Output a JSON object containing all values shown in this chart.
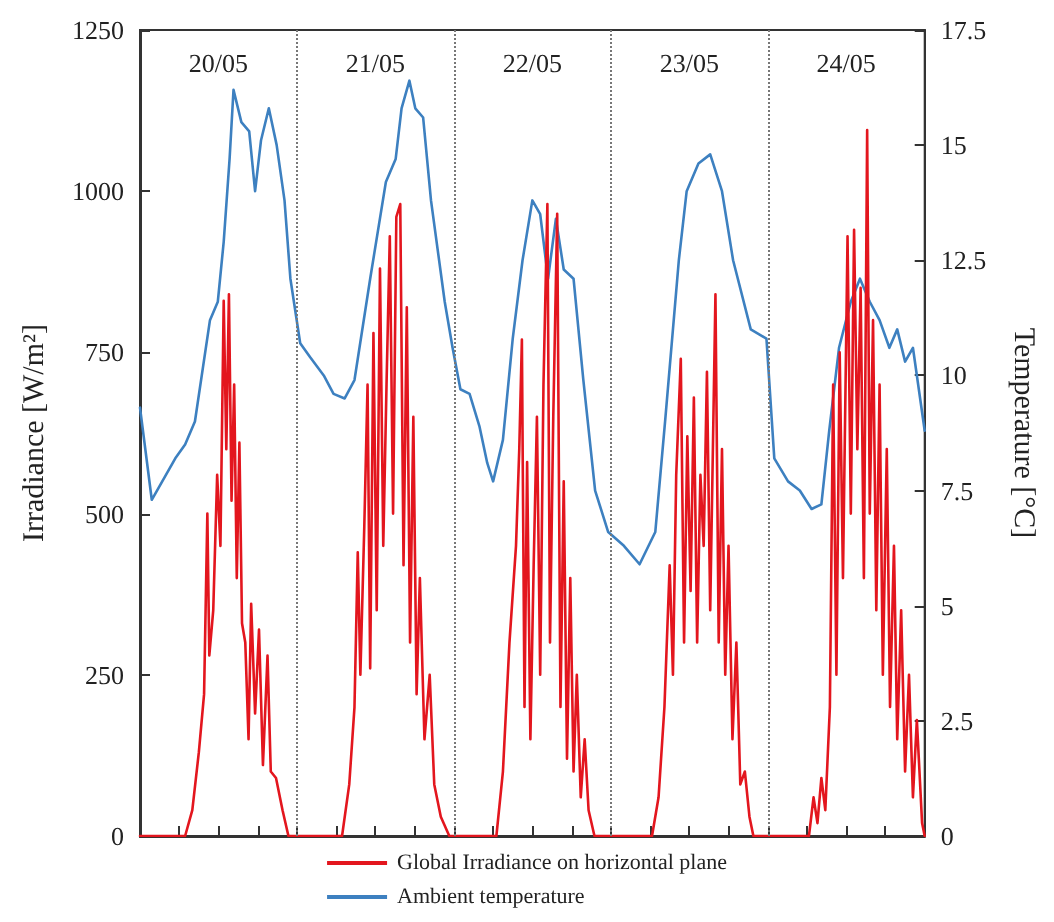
{
  "chart_data": {
    "type": "line",
    "ylabel": "Irradiance [W/m²]",
    "y2label": "Temperature [°C]",
    "xlim": [
      "--05-20T00:00",
      "--05-25T00:00"
    ],
    "xticks": [
      {
        "value": "--05-20T00:00",
        "label": null
      },
      {
        "value": "--05-20T06:00",
        "label": null
      },
      {
        "value": "--05-20T12:00",
        "label": "20/05"
      },
      {
        "value": "--05-20T18:00",
        "label": null
      },
      {
        "value": "--05-21T00:00",
        "label": null
      },
      {
        "value": "--05-21T06:00",
        "label": null
      },
      {
        "value": "--05-21T12:00",
        "label": "21/05"
      },
      {
        "value": "--05-21T18:00",
        "label": null
      },
      {
        "value": "--05-22T00:00",
        "label": null
      },
      {
        "value": "--05-22T06:00",
        "label": null
      },
      {
        "value": "--05-22T12:00",
        "label": "22/05"
      },
      {
        "value": "--05-22T18:00",
        "label": null
      },
      {
        "value": "--05-23T00:00",
        "label": null
      },
      {
        "value": "--05-23T06:00",
        "label": null
      },
      {
        "value": "--05-23T12:00",
        "label": "23/05"
      },
      {
        "value": "--05-23T18:00",
        "label": null
      },
      {
        "value": "--05-24T00:00",
        "label": null
      },
      {
        "value": "--05-24T06:00",
        "label": null
      },
      {
        "value": "--05-24T12:00",
        "label": "24/05"
      },
      {
        "value": "--05-24T18:00",
        "label": null
      },
      {
        "value": "--05-25T00:00",
        "label": null
      }
    ],
    "ylim": [
      0,
      1250
    ],
    "yticks": [
      0,
      250,
      500,
      750,
      1000,
      1250
    ],
    "y2lim": [
      0,
      17.5
    ],
    "y2ticks": [
      0,
      2.5,
      5,
      7.5,
      10,
      12.5,
      15,
      17.5
    ],
    "grid": false,
    "legend": "bottom",
    "marker": "none",
    "line_style": "solid",
    "ref_lines": [
      {
        "axis": "x",
        "value": "--05-21T00:00",
        "color": "#777777",
        "line_style": "dotted"
      },
      {
        "axis": "x",
        "value": "--05-22T00:00",
        "color": "#777777",
        "line_style": "dotted"
      },
      {
        "axis": "x",
        "value": "--05-23T00:00",
        "color": "#777777",
        "line_style": "dotted"
      },
      {
        "axis": "x",
        "value": "--05-24T00:00",
        "color": "#777777",
        "line_style": "dotted"
      }
    ],
    "series": [
      {
        "name": "Global Irradiance on horizontal plane",
        "color": "#e3161e",
        "x": [
          "--05-20T00:00",
          "--05-20T06:54",
          "--05-20T08:00",
          "--05-20T09:00",
          "--05-20T09:48",
          "--05-20T10:18",
          "--05-20T10:36",
          "--05-20T11:12",
          "--05-20T11:48",
          "--05-20T12:18",
          "--05-20T12:48",
          "--05-20T13:12",
          "--05-20T13:36",
          "--05-20T14:00",
          "--05-20T14:24",
          "--05-20T14:48",
          "--05-20T15:12",
          "--05-20T15:36",
          "--05-20T16:06",
          "--05-20T16:36",
          "--05-20T17:00",
          "--05-20T17:36",
          "--05-20T18:12",
          "--05-20T18:48",
          "--05-20T19:30",
          "--05-20T20:00",
          "--05-20T20:48",
          "--05-20T21:48",
          "--05-20T22:42",
          "--05-21T00:00",
          "--05-21T06:54",
          "--05-21T08:00",
          "--05-21T08:48",
          "--05-21T09:18",
          "--05-21T09:42",
          "--05-21T10:18",
          "--05-21T10:48",
          "--05-21T11:12",
          "--05-21T11:42",
          "--05-21T12:12",
          "--05-21T12:42",
          "--05-21T13:12",
          "--05-21T13:42",
          "--05-21T14:12",
          "--05-21T14:42",
          "--05-21T15:12",
          "--05-21T15:48",
          "--05-21T16:18",
          "--05-21T16:48",
          "--05-21T17:18",
          "--05-21T17:48",
          "--05-21T18:18",
          "--05-21T18:48",
          "--05-21T19:30",
          "--05-21T20:18",
          "--05-21T21:00",
          "--05-21T22:00",
          "--05-21T23:18",
          "--05-22T00:00",
          "--05-22T06:30",
          "--05-22T07:30",
          "--05-22T08:30",
          "--05-22T09:30",
          "--05-22T10:00",
          "--05-22T10:24",
          "--05-22T10:48",
          "--05-22T11:12",
          "--05-22T11:42",
          "--05-22T12:12",
          "--05-22T12:42",
          "--05-22T13:12",
          "--05-22T13:42",
          "--05-22T14:18",
          "--05-22T14:42",
          "--05-22T15:12",
          "--05-22T15:48",
          "--05-22T16:18",
          "--05-22T16:48",
          "--05-22T17:18",
          "--05-22T17:48",
          "--05-22T18:18",
          "--05-22T18:48",
          "--05-22T19:24",
          "--05-22T20:00",
          "--05-22T20:36",
          "--05-22T21:30",
          "--05-23T00:00",
          "--05-23T06:18",
          "--05-23T07:18",
          "--05-23T08:12",
          "--05-23T09:00",
          "--05-23T09:30",
          "--05-23T10:00",
          "--05-23T10:42",
          "--05-23T11:12",
          "--05-23T11:42",
          "--05-23T12:12",
          "--05-23T12:42",
          "--05-23T13:12",
          "--05-23T13:42",
          "--05-23T14:12",
          "--05-23T14:42",
          "--05-23T15:12",
          "--05-23T16:00",
          "--05-23T16:30",
          "--05-23T17:00",
          "--05-23T17:30",
          "--05-23T18:00",
          "--05-23T18:36",
          "--05-23T19:12",
          "--05-23T19:48",
          "--05-23T20:30",
          "--05-23T21:12",
          "--05-23T21:48",
          "--05-24T00:00",
          "--05-24T06:18",
          "--05-24T07:00",
          "--05-24T07:36",
          "--05-24T08:12",
          "--05-24T08:48",
          "--05-24T09:30",
          "--05-24T10:00",
          "--05-24T10:30",
          "--05-24T11:00",
          "--05-24T11:30",
          "--05-24T12:12",
          "--05-24T12:42",
          "--05-24T13:12",
          "--05-24T13:42",
          "--05-24T14:12",
          "--05-24T14:42",
          "--05-24T15:12",
          "--05-24T15:36",
          "--05-24T16:06",
          "--05-24T16:36",
          "--05-24T17:06",
          "--05-24T17:36",
          "--05-24T18:12",
          "--05-24T18:42",
          "--05-24T19:18",
          "--05-24T19:48",
          "--05-24T20:24",
          "--05-24T21:00",
          "--05-24T21:36",
          "--05-24T22:12",
          "--05-24T22:48",
          "--05-24T23:36",
          "--05-25T00:00"
        ],
        "values": [
          0,
          0,
          40,
          130,
          220,
          500,
          280,
          350,
          560,
          450,
          830,
          600,
          840,
          520,
          700,
          400,
          610,
          330,
          300,
          150,
          360,
          190,
          320,
          110,
          280,
          100,
          90,
          40,
          0,
          0,
          0,
          80,
          200,
          440,
          250,
          480,
          700,
          260,
          780,
          350,
          880,
          450,
          700,
          930,
          500,
          960,
          980,
          420,
          820,
          300,
          650,
          220,
          400,
          150,
          250,
          80,
          30,
          0,
          0,
          0,
          100,
          300,
          450,
          600,
          770,
          200,
          580,
          150,
          420,
          650,
          250,
          700,
          980,
          300,
          650,
          965,
          200,
          550,
          120,
          400,
          100,
          250,
          60,
          150,
          40,
          0,
          0,
          0,
          60,
          200,
          420,
          250,
          560,
          740,
          300,
          620,
          380,
          680,
          300,
          560,
          450,
          720,
          350,
          840,
          300,
          600,
          250,
          450,
          150,
          300,
          80,
          100,
          30,
          0,
          0,
          0,
          60,
          20,
          90,
          40,
          200,
          700,
          250,
          750,
          400,
          930,
          500,
          940,
          600,
          850,
          400,
          1095,
          500,
          800,
          350,
          700,
          250,
          600,
          200,
          450,
          150,
          350,
          100,
          250,
          60,
          180,
          20,
          0
        ]
      },
      {
        "name": "Ambient temperature",
        "color": "#3d80c0",
        "axis": "y2",
        "x": [
          "--05-20T00:00",
          "--05-20T01:48",
          "--05-20T05:24",
          "--05-20T06:54",
          "--05-20T08:24",
          "--05-20T10:42",
          "--05-20T11:54",
          "--05-20T12:48",
          "--05-20T13:42",
          "--05-20T14:18",
          "--05-20T15:30",
          "--05-20T16:42",
          "--05-20T17:36",
          "--05-20T18:30",
          "--05-20T19:42",
          "--05-20T20:54",
          "--05-20T22:06",
          "--05-20T23:00",
          "--05-21T00:30",
          "--05-21T02:00",
          "--05-21T04:06",
          "--05-21T05:36",
          "--05-21T07:18",
          "--05-21T08:48",
          "--05-21T11:12",
          "--05-21T13:36",
          "--05-21T15:06",
          "--05-21T16:00",
          "--05-21T17:12",
          "--05-21T18:06",
          "--05-21T19:18",
          "--05-21T20:30",
          "--05-21T22:36",
          "--05-21T23:48",
          "--05-22T01:00",
          "--05-22T02:24",
          "--05-22T03:54",
          "--05-22T05:06",
          "--05-22T06:00",
          "--05-22T07:30",
          "--05-22T09:00",
          "--05-22T10:30",
          "--05-22T12:00",
          "--05-22T13:12",
          "--05-22T14:24",
          "--05-22T15:36",
          "--05-22T16:48",
          "--05-22T18:18",
          "--05-22T19:48",
          "--05-22T21:36",
          "--05-22T23:36",
          "--05-23T02:00",
          "--05-23T04:24",
          "--05-23T06:48",
          "--05-23T08:18",
          "--05-23T10:24",
          "--05-23T11:36",
          "--05-23T13:24",
          "--05-23T15:12",
          "--05-23T17:00",
          "--05-23T18:42",
          "--05-23T21:24",
          "--05-23T23:48",
          "--05-24T01:00",
          "--05-24T03:06",
          "--05-24T04:54",
          "--05-24T06:42",
          "--05-24T08:12",
          "--05-24T09:24",
          "--05-24T10:54",
          "--05-24T12:42",
          "--05-24T14:06",
          "--05-24T15:36",
          "--05-24T17:06",
          "--05-24T18:36",
          "--05-24T19:48",
          "--05-24T21:00",
          "--05-24T22:12",
          "--05-25T00:00"
        ],
        "values": [
          9.3,
          7.3,
          8.2,
          8.5,
          9.0,
          11.2,
          11.6,
          12.9,
          14.7,
          16.2,
          15.5,
          15.3,
          14.0,
          15.1,
          15.8,
          15.0,
          13.8,
          12.1,
          10.7,
          10.4,
          10.0,
          9.6,
          9.5,
          9.9,
          12.1,
          14.2,
          14.7,
          15.8,
          16.4,
          15.8,
          15.6,
          13.8,
          11.6,
          10.6,
          9.7,
          9.6,
          8.9,
          8.1,
          7.7,
          8.6,
          10.8,
          12.5,
          13.8,
          13.5,
          12.1,
          13.4,
          12.3,
          12.1,
          9.9,
          7.5,
          6.6,
          6.3,
          5.9,
          6.6,
          9.0,
          12.5,
          14.0,
          14.6,
          14.8,
          14.0,
          12.5,
          11.0,
          10.8,
          8.2,
          7.7,
          7.5,
          7.1,
          7.2,
          8.8,
          10.6,
          11.6,
          12.1,
          11.6,
          11.2,
          10.6,
          11.0,
          10.3,
          10.6,
          8.8
        ]
      }
    ]
  }
}
